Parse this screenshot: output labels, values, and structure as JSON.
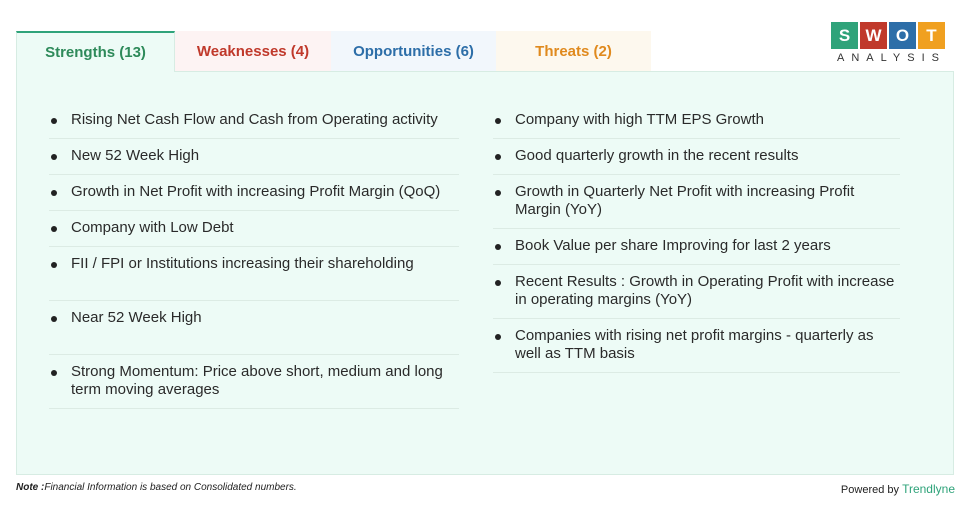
{
  "tabs": {
    "strengths": "Strengths (13)",
    "weaknesses": "Weaknesses (4)",
    "opportunities": "Opportunities (6)",
    "threats": "Threats (2)"
  },
  "logo": {
    "letters": [
      "S",
      "W",
      "O",
      "T"
    ],
    "colors": [
      "#2fa37a",
      "#c0392b",
      "#2d6ea8",
      "#f0a020"
    ],
    "subtitle": "ANALYSIS"
  },
  "strengths": {
    "left": [
      "Rising Net Cash Flow and Cash from Operating activity",
      "New 52 Week High",
      "Growth in Net Profit with increasing Profit Margin (QoQ)",
      "Company with Low Debt",
      "FII / FPI or Institutions increasing their shareholding",
      "Near 52 Week High",
      "Strong Momentum: Price above short, medium and long term moving averages"
    ],
    "right": [
      "Company with high TTM EPS Growth",
      "Good quarterly growth in the recent results",
      "Growth in Quarterly Net Profit with increasing Profit Margin (YoY)",
      "Book Value per share Improving for last 2 years",
      "Recent Results : Growth in Operating Profit with increase in operating margins (YoY)",
      "Companies with rising net profit margins - quarterly as well as TTM basis"
    ]
  },
  "footer": {
    "note_label": "Note :",
    "note_text": "Financial Information is based on Consolidated numbers.",
    "powered_by": "Powered by",
    "brand": "Trendlyne"
  }
}
